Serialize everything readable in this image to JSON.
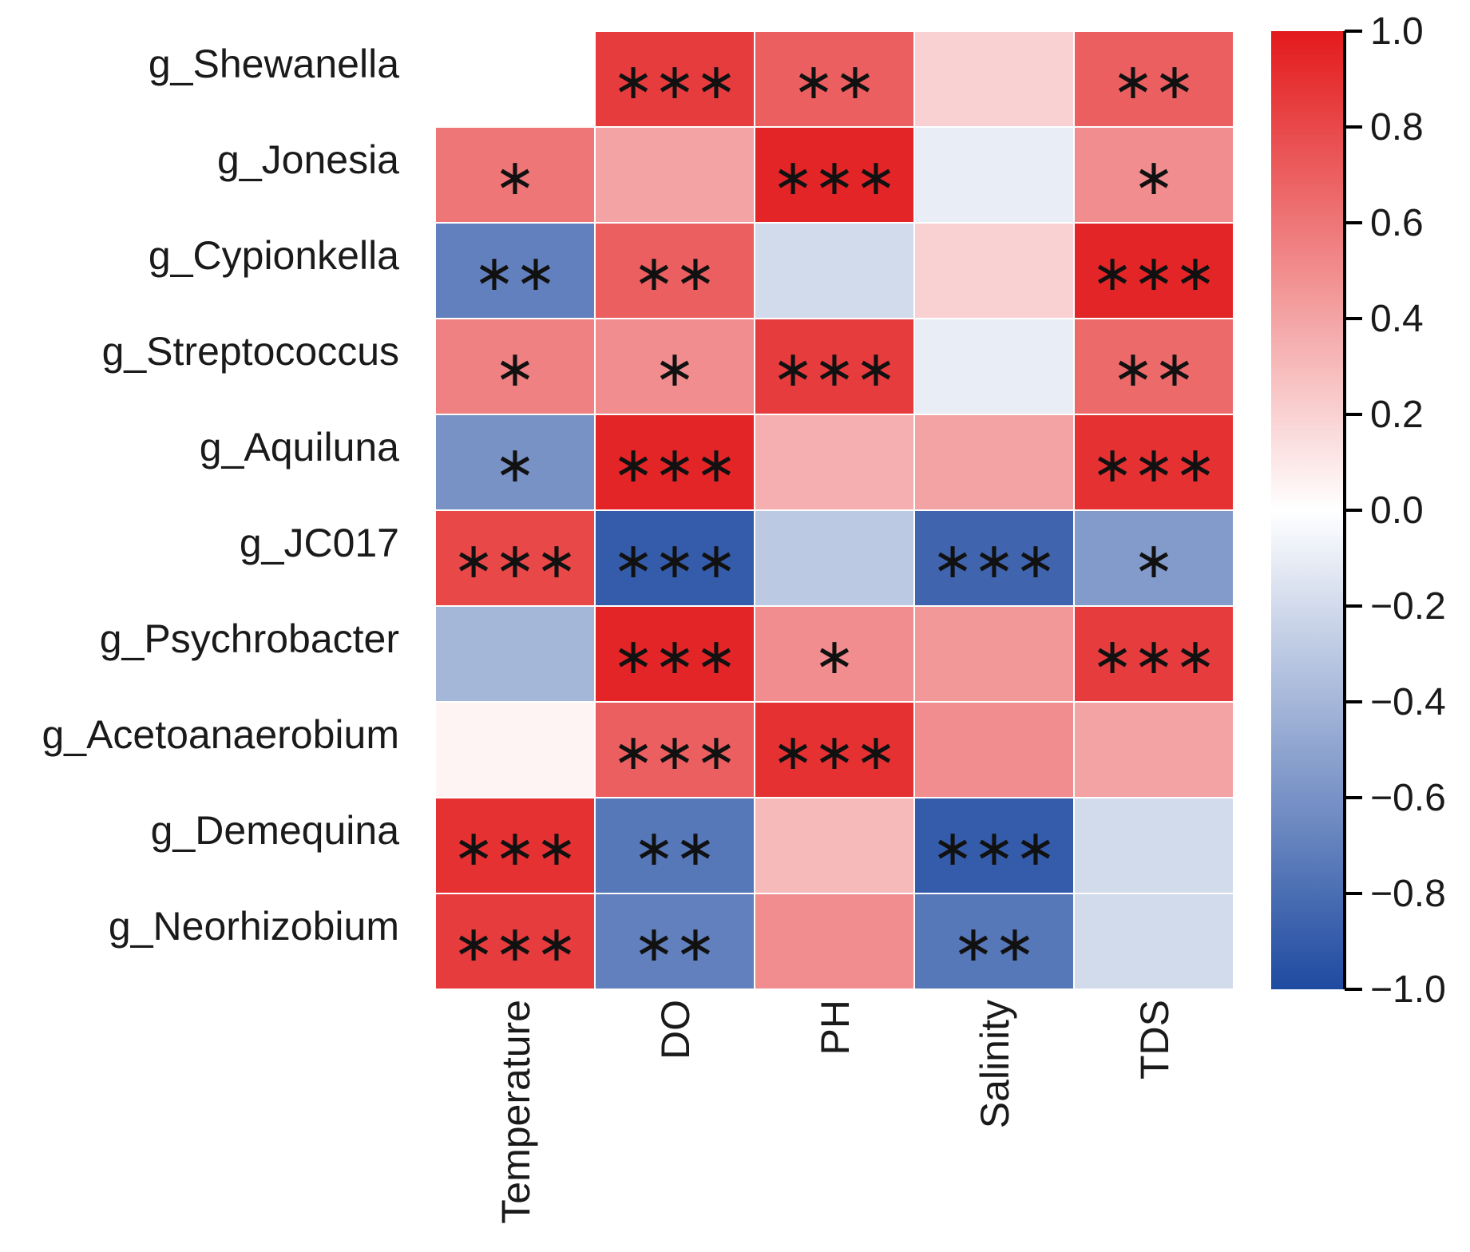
{
  "chart_data": {
    "type": "heatmap",
    "title": "",
    "xlabel": "",
    "ylabel": "",
    "columns": [
      "Temperature",
      "DO",
      "PH",
      "Salinity",
      "TDS"
    ],
    "rows": [
      "g_Shewanella",
      "g_Jonesia",
      "g_Cypionkella",
      "g_Streptococcus",
      "g_Aquiluna",
      "g_JC017",
      "g_Psychrobacter",
      "g_Acetoanaerobium",
      "g_Demequina",
      "g_Neorhizobium"
    ],
    "values": [
      [
        0.0,
        0.85,
        0.7,
        0.2,
        0.7
      ],
      [
        0.6,
        0.4,
        0.95,
        -0.1,
        0.5
      ],
      [
        -0.7,
        0.7,
        -0.2,
        0.2,
        0.95
      ],
      [
        0.55,
        0.5,
        0.85,
        -0.1,
        0.65
      ],
      [
        -0.6,
        0.95,
        0.35,
        0.4,
        0.9
      ],
      [
        0.8,
        -0.9,
        -0.3,
        -0.85,
        -0.55
      ],
      [
        -0.4,
        0.95,
        0.5,
        0.45,
        0.85
      ],
      [
        0.05,
        0.7,
        0.9,
        0.5,
        0.4
      ],
      [
        0.9,
        -0.75,
        0.3,
        -0.9,
        -0.2
      ],
      [
        0.85,
        -0.7,
        0.5,
        -0.75,
        -0.2
      ]
    ],
    "significance": [
      [
        "",
        "***",
        "**",
        "",
        "**"
      ],
      [
        "*",
        "",
        "***",
        "",
        "*"
      ],
      [
        "**",
        "**",
        "",
        "",
        "***"
      ],
      [
        "*",
        "*",
        "***",
        "",
        "**"
      ],
      [
        "*",
        "***",
        "",
        "",
        "***"
      ],
      [
        "***",
        "***",
        "",
        "***",
        "*"
      ],
      [
        "",
        "***",
        "*",
        "",
        "***"
      ],
      [
        "",
        "***",
        "***",
        "",
        ""
      ],
      [
        "***",
        "**",
        "",
        "***",
        ""
      ],
      [
        "***",
        "**",
        "",
        "**",
        ""
      ]
    ],
    "colorbar": {
      "range": [
        -1.0,
        1.0
      ],
      "ticks": [
        1.0,
        0.8,
        0.6,
        0.4,
        0.2,
        0.0,
        -0.2,
        -0.4,
        -0.6,
        -0.8,
        -1.0
      ],
      "tick_labels": [
        "1.0",
        "0.8",
        "0.6",
        "0.4",
        "0.2",
        "0.0",
        "−0.2",
        "−0.4",
        "−0.6",
        "−0.8",
        "−1.0"
      ],
      "low_color": "#1e4aa0",
      "mid_color": "#ffffff",
      "high_color": "#e31a1c",
      "legend_position": "right"
    },
    "grid": false
  }
}
